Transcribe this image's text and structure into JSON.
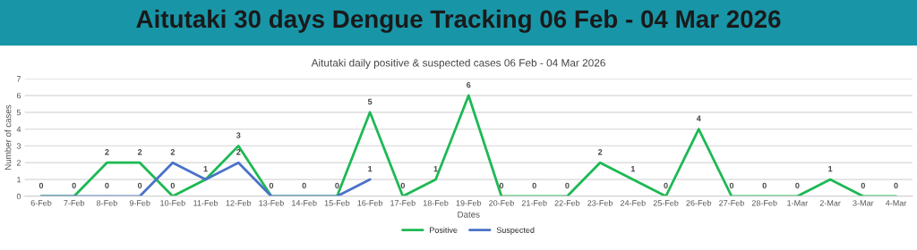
{
  "chart_data": {
    "type": "line",
    "title": "Aitutaki 30 days Dengue Tracking 06 Feb - 04 Mar 2026",
    "subtitle": "Aitutaki daily positive & suspected cases 06 Feb - 04 Mar 2026",
    "xlabel": "Dates",
    "ylabel": "Number of cases",
    "categories": [
      "6-Feb",
      "7-Feb",
      "8-Feb",
      "9-Feb",
      "10-Feb",
      "11-Feb",
      "12-Feb",
      "13-Feb",
      "14-Feb",
      "15-Feb",
      "16-Feb",
      "17-Feb",
      "18-Feb",
      "19-Feb",
      "20-Feb",
      "21-Feb",
      "22-Feb",
      "23-Feb",
      "24-Feb",
      "25-Feb",
      "26-Feb",
      "27-Feb",
      "28-Feb",
      "1-Mar",
      "2-Mar",
      "3-Mar",
      "4-Mar"
    ],
    "series": [
      {
        "name": "Positive",
        "color": "#1db954",
        "values": [
          0,
          0,
          2,
          2,
          0,
          1,
          3,
          0,
          0,
          0,
          5,
          0,
          1,
          6,
          0,
          0,
          0,
          2,
          1,
          0,
          4,
          0,
          0,
          0,
          1,
          0,
          0
        ],
        "value_labels": [
          "0",
          "0",
          "2",
          "2",
          "0",
          "1",
          "3",
          "0",
          "0",
          "0",
          "5",
          "0",
          "1",
          "6",
          "0",
          "0",
          "0",
          "2",
          "1",
          "0",
          "4",
          "0",
          "0",
          "0",
          "1",
          "0",
          "0"
        ]
      },
      {
        "name": "Suspected",
        "color": "#4a72c8",
        "values": [
          0,
          0,
          0,
          0,
          2,
          1,
          2,
          0,
          0,
          0,
          1,
          null,
          null,
          null,
          null,
          null,
          null,
          null,
          null,
          null,
          null,
          null,
          null,
          null,
          null,
          null,
          null
        ],
        "value_labels": [
          null,
          null,
          "0",
          "0",
          "2",
          null,
          "2",
          null,
          null,
          null,
          "1",
          null,
          null,
          null,
          null,
          null,
          null,
          null,
          null,
          null,
          null,
          null,
          null,
          null,
          null,
          null,
          null
        ]
      }
    ],
    "ylim": [
      0,
      7
    ],
    "yticks": [
      0,
      1,
      2,
      3,
      4,
      5,
      6,
      7
    ],
    "grid": "y",
    "legend": "bottom",
    "marker": "none",
    "line_style": "solid"
  }
}
